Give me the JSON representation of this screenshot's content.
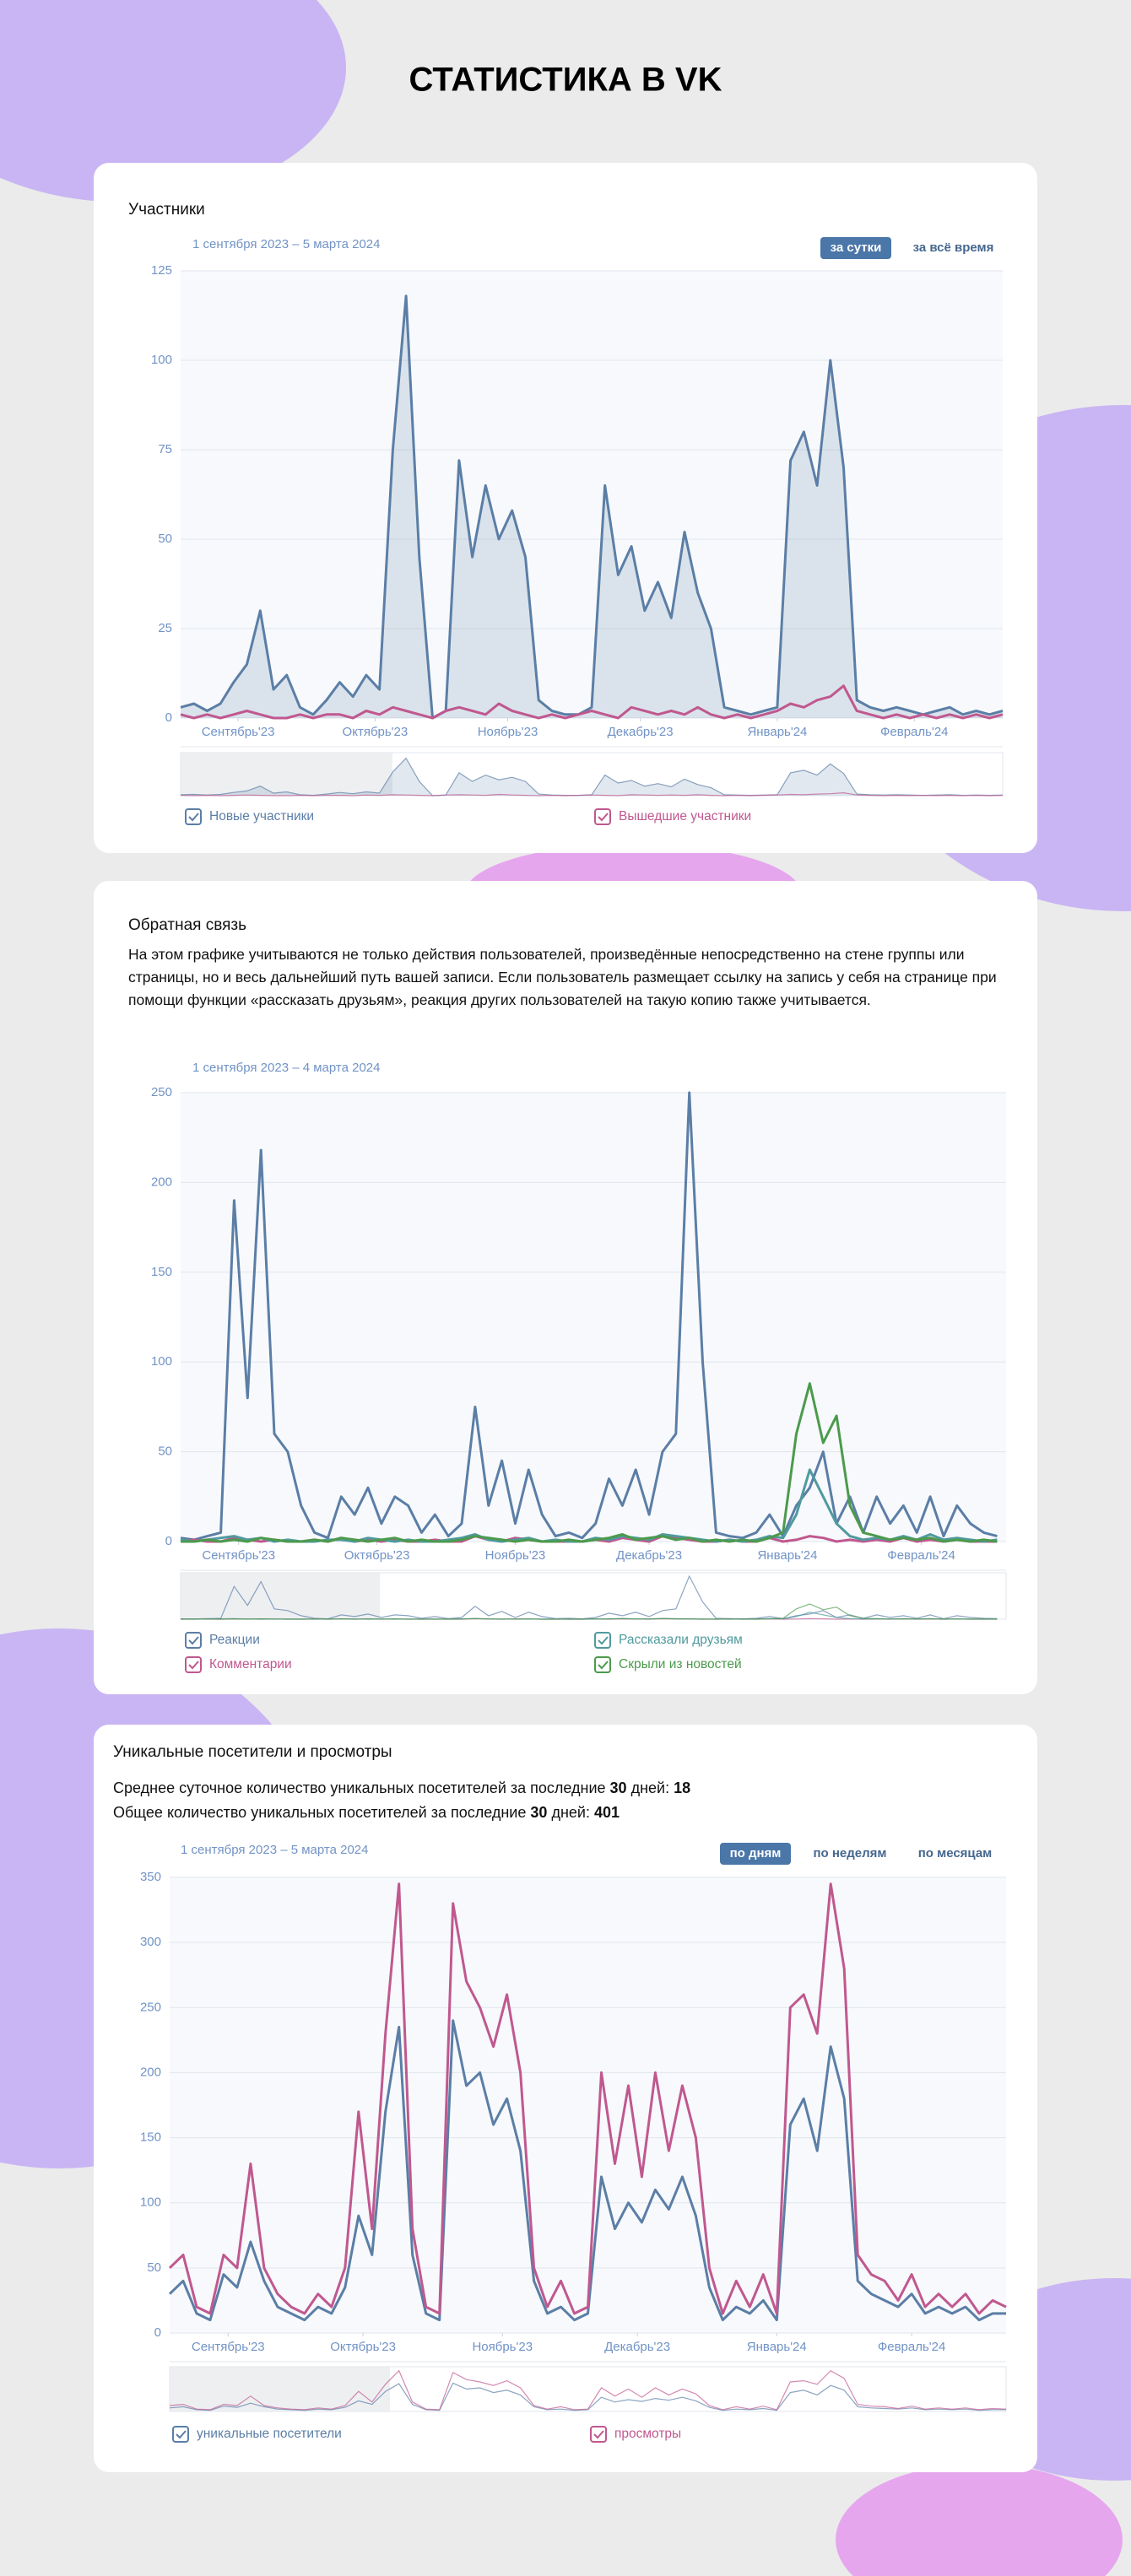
{
  "page_title": "СТАТИСТИКА В VK",
  "chart_data": [
    {
      "type": "line",
      "title": "Участники",
      "subtitle": "1 сентября 2023 – 5 марта 2024",
      "buttons": [
        "за сутки",
        "за всё время"
      ],
      "active_button": 0,
      "fill": true,
      "grid": true,
      "x": [
        0,
        3,
        6,
        9,
        12,
        15,
        18,
        21,
        24,
        27,
        30,
        33,
        36,
        39,
        42,
        45,
        48,
        51,
        54,
        57,
        60,
        63,
        66,
        69,
        72,
        75,
        78,
        81,
        84,
        87,
        90,
        93,
        96,
        99,
        102,
        105,
        108,
        111,
        114,
        117,
        120,
        123,
        126,
        129,
        132,
        135,
        138,
        141,
        144,
        147,
        150,
        153,
        156,
        159,
        162,
        165,
        168,
        171,
        174,
        177,
        180,
        183,
        186
      ],
      "xlim": [
        0,
        186
      ],
      "xticks": [
        {
          "value": 13,
          "label": "Сентябрь'23"
        },
        {
          "value": 44,
          "label": "Октябрь'23"
        },
        {
          "value": 74,
          "label": "Ноябрь'23"
        },
        {
          "value": 104,
          "label": "Декабрь'23"
        },
        {
          "value": 135,
          "label": "Январь'24"
        },
        {
          "value": 166,
          "label": "Февраль'24"
        }
      ],
      "ylim": [
        0,
        125
      ],
      "yticks": [
        0,
        25,
        50,
        75,
        100,
        125
      ],
      "series": [
        {
          "name": "Новые участники",
          "color": "#5b7ea6",
          "values": [
            3,
            4,
            2,
            4,
            10,
            15,
            30,
            8,
            12,
            3,
            1,
            5,
            10,
            6,
            12,
            8,
            75,
            118,
            45,
            0,
            2,
            72,
            45,
            65,
            50,
            58,
            45,
            5,
            2,
            1,
            1,
            3,
            65,
            40,
            48,
            30,
            38,
            28,
            52,
            35,
            25,
            3,
            2,
            1,
            2,
            3,
            72,
            80,
            65,
            100,
            70,
            5,
            3,
            2,
            3,
            2,
            1,
            2,
            3,
            1,
            2,
            1,
            2
          ]
        },
        {
          "name": "Вышедшие участники",
          "color": "#c0588f",
          "values": [
            1,
            0,
            1,
            0,
            1,
            2,
            1,
            0,
            0,
            1,
            0,
            1,
            1,
            0,
            2,
            1,
            3,
            2,
            1,
            0,
            2,
            3,
            2,
            1,
            4,
            2,
            1,
            0,
            1,
            0,
            1,
            2,
            1,
            0,
            3,
            2,
            1,
            2,
            1,
            3,
            1,
            0,
            1,
            0,
            1,
            2,
            4,
            3,
            5,
            6,
            9,
            2,
            1,
            0,
            1,
            0,
            1,
            0,
            1,
            0,
            1,
            0,
            1
          ]
        }
      ]
    },
    {
      "type": "line",
      "title": "Обратная связь",
      "description": "На этом графике учитываются не только действия пользователей, произведённые непосредственно на стене группы или страницы, но и весь дальнейший путь вашей записи. Если пользователь размещает ссылку на запись у себя на странице при помощи функции «рассказать друзьям», реакция других пользователей на такую копию также учитывается.",
      "subtitle": "1 сентября 2023 – 4 марта 2024",
      "fill": false,
      "grid": true,
      "x": [
        0,
        3,
        6,
        9,
        12,
        15,
        18,
        21,
        24,
        27,
        30,
        33,
        36,
        39,
        42,
        45,
        48,
        51,
        54,
        57,
        60,
        63,
        66,
        69,
        72,
        75,
        78,
        81,
        84,
        87,
        90,
        93,
        96,
        99,
        102,
        105,
        108,
        111,
        114,
        117,
        120,
        123,
        126,
        129,
        132,
        135,
        138,
        141,
        144,
        147,
        150,
        153,
        156,
        159,
        162,
        165,
        168,
        171,
        174,
        177,
        180,
        183
      ],
      "xlim": [
        0,
        185
      ],
      "xticks": [
        {
          "value": 13,
          "label": "Сентябрь'23"
        },
        {
          "value": 44,
          "label": "Октябрь'23"
        },
        {
          "value": 75,
          "label": "Ноябрь'23"
        },
        {
          "value": 105,
          "label": "Декабрь'23"
        },
        {
          "value": 136,
          "label": "Январь'24"
        },
        {
          "value": 166,
          "label": "Февраль'24"
        }
      ],
      "ylim": [
        0,
        250
      ],
      "yticks": [
        0,
        50,
        100,
        150,
        200,
        250
      ],
      "series": [
        {
          "name": "Реакции",
          "color": "#5b7ea6",
          "values": [
            2,
            1,
            3,
            5,
            190,
            80,
            218,
            60,
            50,
            20,
            5,
            2,
            25,
            15,
            30,
            10,
            25,
            20,
            5,
            15,
            3,
            10,
            75,
            20,
            45,
            10,
            40,
            15,
            3,
            5,
            2,
            10,
            35,
            20,
            40,
            15,
            50,
            60,
            250,
            100,
            5,
            3,
            2,
            5,
            15,
            3,
            20,
            30,
            50,
            10,
            25,
            5,
            25,
            10,
            20,
            5,
            25,
            3,
            20,
            10,
            5,
            3
          ]
        },
        {
          "name": "Комментарии",
          "color": "#c0588f",
          "values": [
            0,
            1,
            0,
            0,
            2,
            1,
            0,
            1,
            0,
            0,
            1,
            0,
            2,
            0,
            1,
            0,
            1,
            0,
            0,
            1,
            0,
            0,
            3,
            1,
            0,
            2,
            1,
            0,
            0,
            0,
            0,
            1,
            0,
            2,
            1,
            0,
            3,
            2,
            1,
            0,
            0,
            1,
            0,
            0,
            2,
            0,
            1,
            3,
            2,
            0,
            1,
            0,
            1,
            0,
            2,
            0,
            1,
            0,
            1,
            0,
            0,
            0
          ]
        },
        {
          "name": "Рассказали друзьям",
          "color": "#4f9a9e",
          "values": [
            1,
            0,
            1,
            2,
            3,
            1,
            2,
            0,
            1,
            0,
            0,
            1,
            1,
            0,
            2,
            1,
            0,
            1,
            0,
            0,
            1,
            2,
            4,
            1,
            0,
            1,
            2,
            0,
            1,
            0,
            0,
            2,
            1,
            3,
            2,
            1,
            4,
            3,
            2,
            1,
            0,
            1,
            0,
            1,
            3,
            2,
            15,
            40,
            25,
            10,
            3,
            1,
            2,
            1,
            3,
            1,
            4,
            1,
            2,
            1,
            0,
            1
          ]
        },
        {
          "name": "Скрыли из новостей",
          "color": "#4c9a4c",
          "values": [
            0,
            0,
            1,
            0,
            1,
            0,
            2,
            1,
            0,
            0,
            1,
            0,
            2,
            1,
            0,
            1,
            2,
            0,
            1,
            0,
            0,
            1,
            3,
            2,
            1,
            0,
            1,
            0,
            0,
            1,
            0,
            1,
            2,
            4,
            1,
            2,
            3,
            1,
            2,
            0,
            1,
            0,
            1,
            0,
            2,
            5,
            60,
            88,
            55,
            70,
            20,
            5,
            3,
            1,
            2,
            1,
            2,
            0,
            1,
            0,
            1,
            0
          ]
        }
      ]
    },
    {
      "type": "line",
      "title": "Уникальные посетители и просмотры",
      "stats": [
        {
          "label": "Среднее суточное количество уникальных посетителей за последние",
          "days": 30,
          "days_label": "дней:",
          "value": 18
        },
        {
          "label": "Общее количество уникальных посетителей за последние",
          "days": 30,
          "days_label": "дней:",
          "value": 401
        }
      ],
      "subtitle": "1 сентября 2023 – 5 марта 2024",
      "buttons": [
        "по дням",
        "по неделям",
        "по месяцам"
      ],
      "active_button": 0,
      "fill": false,
      "grid": true,
      "x": [
        0,
        3,
        6,
        9,
        12,
        15,
        18,
        21,
        24,
        27,
        30,
        33,
        36,
        39,
        42,
        45,
        48,
        51,
        54,
        57,
        60,
        63,
        66,
        69,
        72,
        75,
        78,
        81,
        84,
        87,
        90,
        93,
        96,
        99,
        102,
        105,
        108,
        111,
        114,
        117,
        120,
        123,
        126,
        129,
        132,
        135,
        138,
        141,
        144,
        147,
        150,
        153,
        156,
        159,
        162,
        165,
        168,
        171,
        174,
        177,
        180,
        183,
        186
      ],
      "xlim": [
        0,
        186
      ],
      "xticks": [
        {
          "value": 13,
          "label": "Сентябрь'23"
        },
        {
          "value": 43,
          "label": "Октябрь'23"
        },
        {
          "value": 74,
          "label": "Ноябрь'23"
        },
        {
          "value": 104,
          "label": "Декабрь'23"
        },
        {
          "value": 135,
          "label": "Январь'24"
        },
        {
          "value": 165,
          "label": "Февраль'24"
        }
      ],
      "ylim": [
        0,
        350
      ],
      "yticks": [
        0,
        50,
        100,
        150,
        200,
        250,
        300,
        350
      ],
      "series": [
        {
          "name": "уникальные посетители",
          "color": "#5b7ea6",
          "values": [
            30,
            40,
            15,
            10,
            45,
            35,
            70,
            40,
            20,
            15,
            10,
            20,
            15,
            35,
            90,
            60,
            170,
            235,
            60,
            15,
            10,
            240,
            190,
            200,
            160,
            180,
            140,
            40,
            15,
            20,
            10,
            15,
            120,
            80,
            100,
            85,
            110,
            95,
            120,
            90,
            35,
            10,
            20,
            15,
            25,
            10,
            160,
            180,
            140,
            220,
            180,
            40,
            30,
            25,
            20,
            30,
            15,
            20,
            15,
            20,
            10,
            15,
            15
          ]
        },
        {
          "name": "просмотры",
          "color": "#c0588f",
          "values": [
            50,
            60,
            20,
            15,
            60,
            50,
            130,
            50,
            30,
            20,
            15,
            30,
            20,
            50,
            170,
            80,
            230,
            345,
            80,
            20,
            15,
            330,
            270,
            250,
            220,
            260,
            200,
            50,
            20,
            40,
            15,
            20,
            200,
            130,
            190,
            120,
            200,
            140,
            190,
            150,
            50,
            15,
            40,
            20,
            45,
            15,
            250,
            260,
            230,
            345,
            280,
            60,
            45,
            40,
            25,
            45,
            20,
            30,
            20,
            30,
            15,
            25,
            20
          ]
        }
      ]
    }
  ]
}
